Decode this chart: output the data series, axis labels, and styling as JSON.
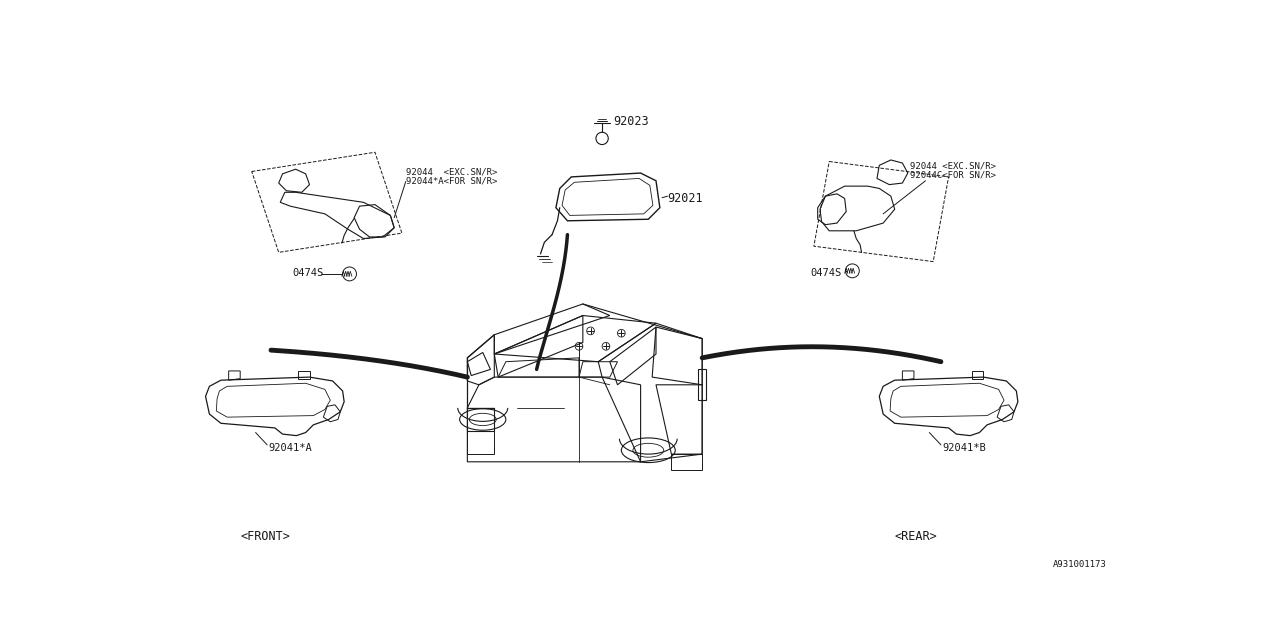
{
  "bg_color": "#ffffff",
  "line_color": "#1a1a1a",
  "text_color": "#1a1a1a",
  "fig_width": 12.8,
  "fig_height": 6.4,
  "dpi": 100,
  "labels": {
    "part_92023": "92023",
    "part_92021": "92021",
    "part_92044_left_line1": "92044  <EXC.SN/R>",
    "part_92044_left_line2": "92044*A<FOR SN/R>",
    "part_0474S_left": "0474S",
    "part_92044_right_line1": "92044 <EXC.SN/R>",
    "part_92044_right_line2": "92044C<FOR SN/R>",
    "part_0474S_right": "0474S",
    "part_92041A": "92041*A",
    "part_92041B": "92041*B",
    "front_label": "<FRONT>",
    "rear_label": "<REAR>",
    "diagram_num": "A931001173"
  },
  "font_size_tiny": 6.5,
  "font_size_small": 7.5,
  "font_size_medium": 8.5,
  "font_family": "monospace"
}
